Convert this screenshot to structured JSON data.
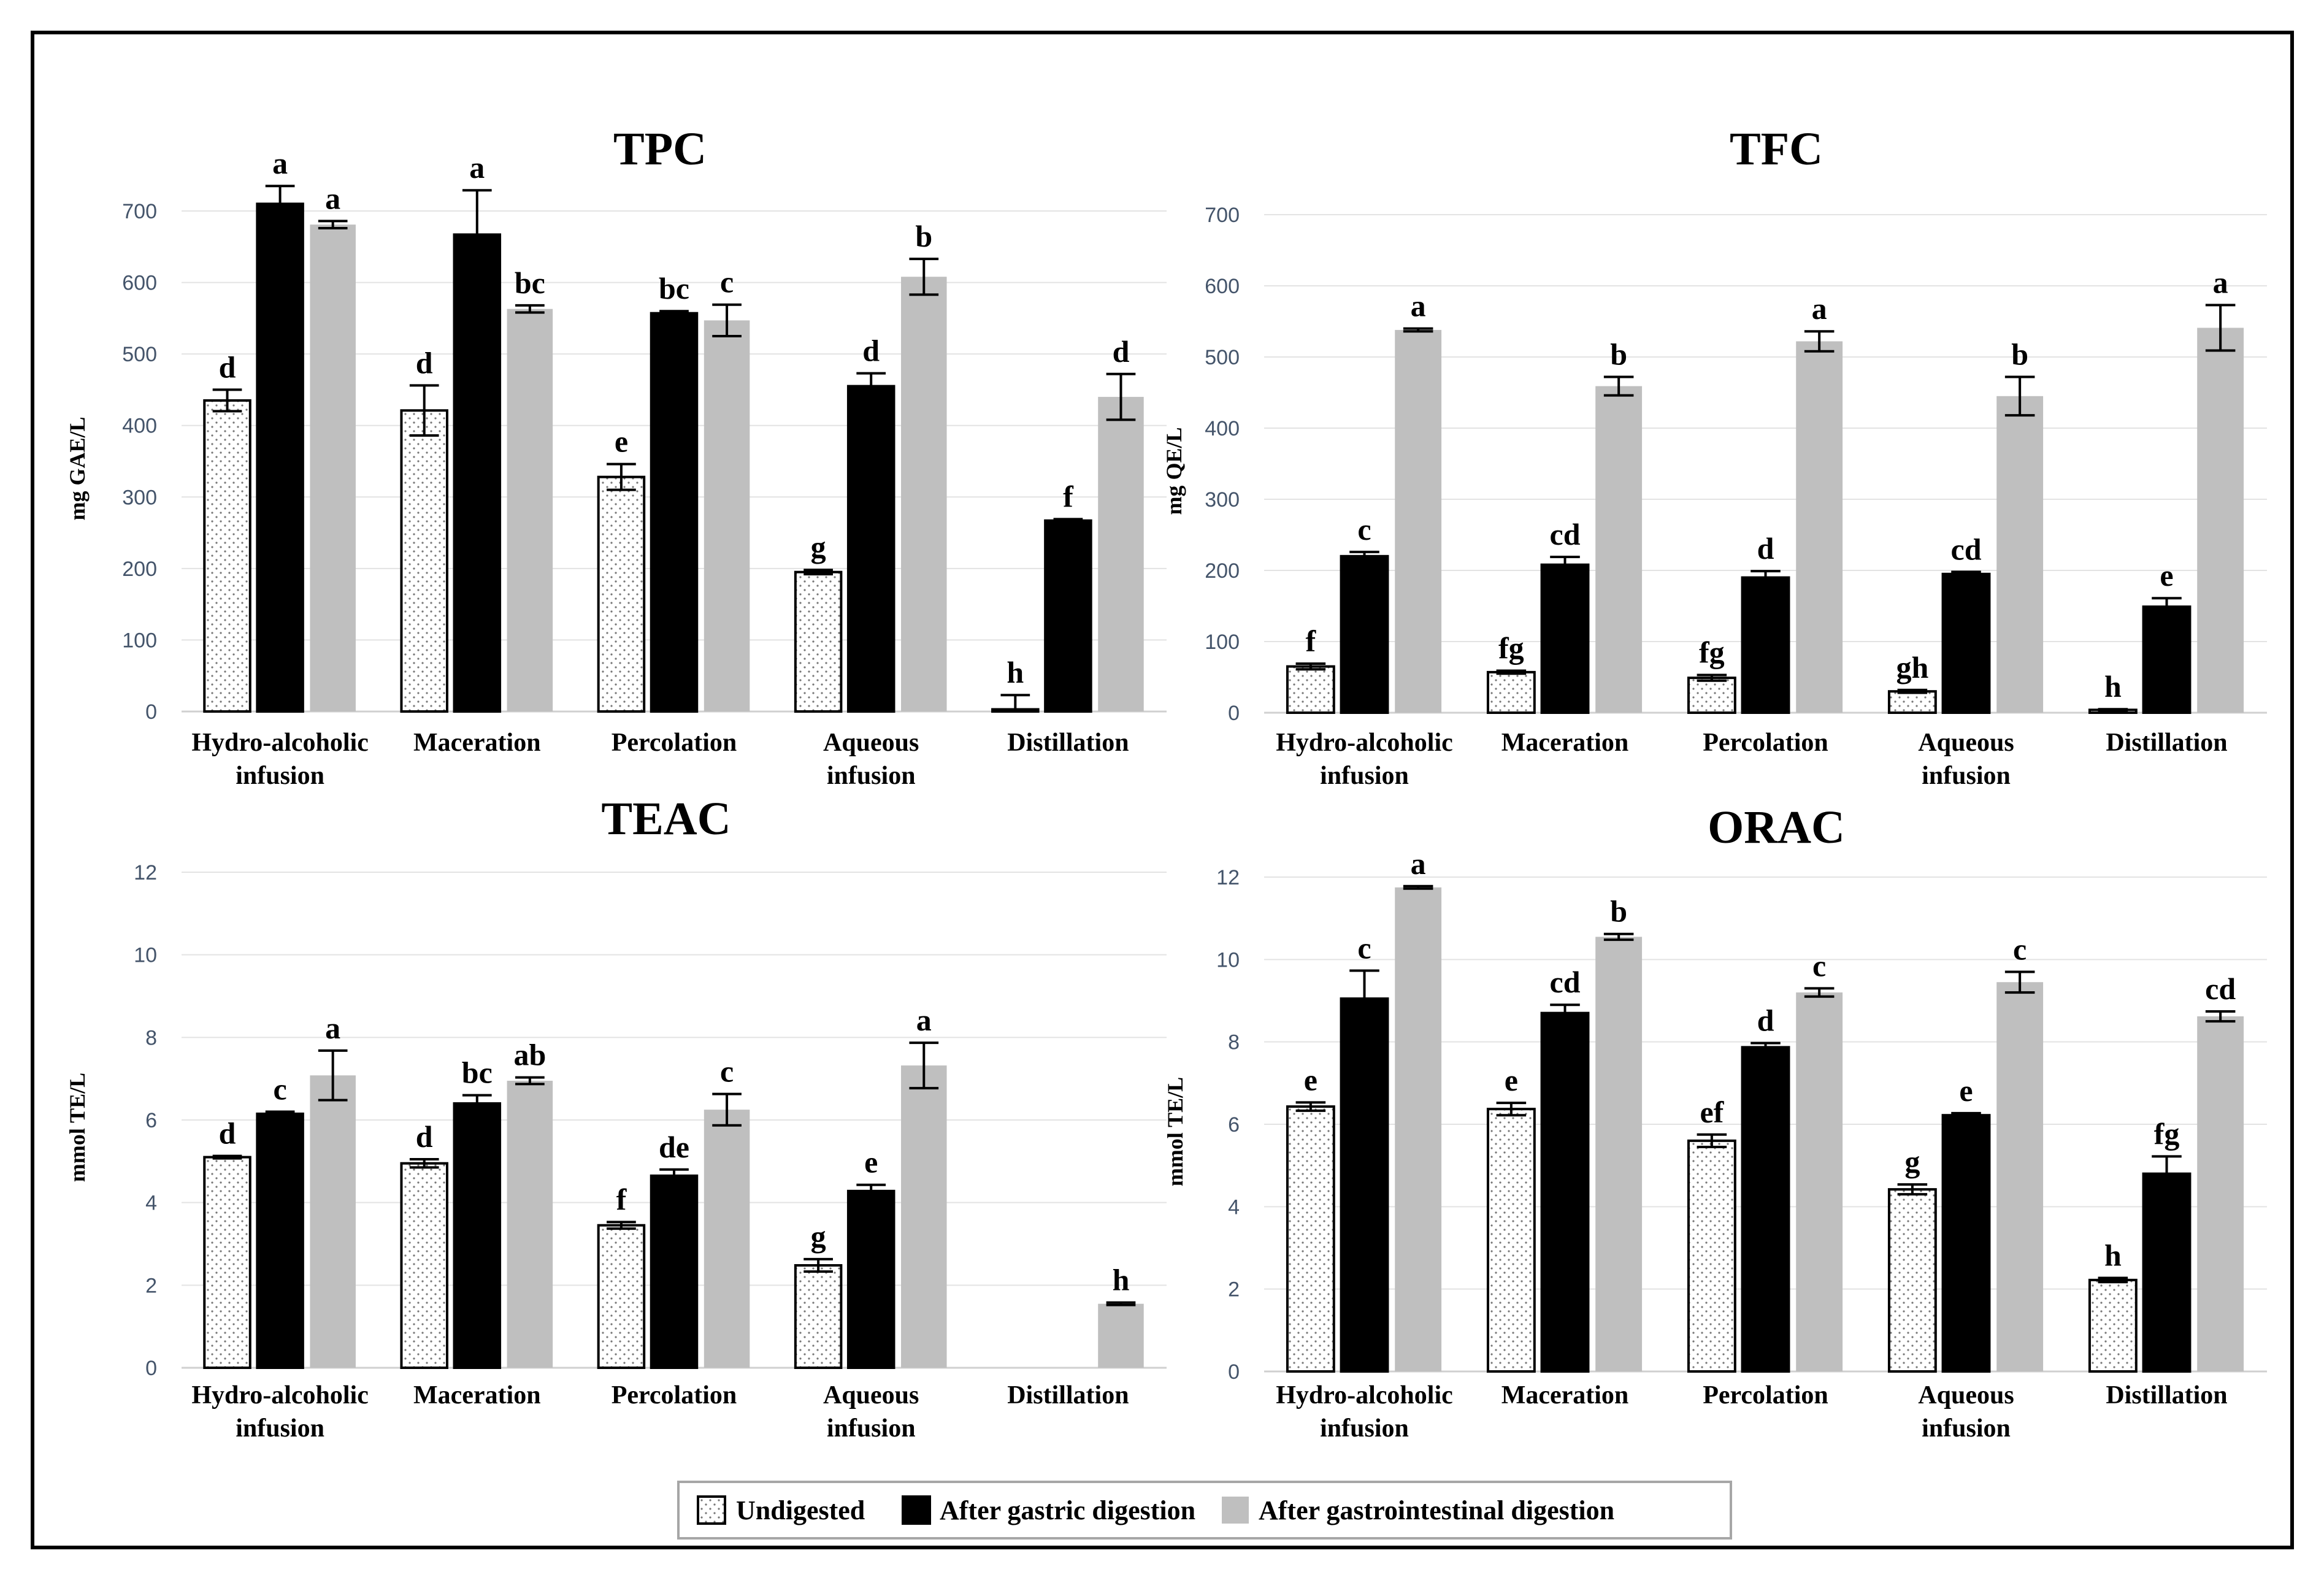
{
  "legend": [
    {
      "name": "Undigested",
      "fill": "dotted",
      "color": "#ffffff"
    },
    {
      "name": "After gastric digestion",
      "color": "#000000"
    },
    {
      "name": "After gastrointestinal digestion",
      "color": "#bfbfbf"
    }
  ],
  "chart_data": [
    {
      "type": "bar",
      "title": "TPC",
      "ylabel": "mg GAE/L",
      "ylim": [
        0,
        700
      ],
      "yticks": [
        0,
        100,
        200,
        300,
        400,
        500,
        600,
        700
      ],
      "categories": [
        "Hydro-alcoholic infusion",
        "Maceration",
        "Percolation",
        "Aqueous infusion",
        "Distillation"
      ],
      "category_lines": [
        [
          "Hydro-alcoholic",
          "infusion"
        ],
        [
          "Maceration"
        ],
        [
          "Percolation"
        ],
        [
          "Aqueous",
          "infusion"
        ],
        [
          "Distillation"
        ]
      ],
      "series": [
        {
          "name": "Undigested",
          "values": [
            435,
            421,
            328,
            195,
            3
          ],
          "errors": [
            15,
            35,
            18,
            3,
            20
          ],
          "letters": [
            "d",
            "d",
            "e",
            "g",
            "h"
          ]
        },
        {
          "name": "After gastric digestion",
          "values": [
            710,
            667,
            557,
            455,
            267
          ],
          "errors": [
            25,
            62,
            3,
            18,
            2
          ],
          "letters": [
            "a",
            "a",
            "bc",
            "d",
            "f"
          ]
        },
        {
          "name": "After gastrointestinal digestion",
          "values": [
            681,
            563,
            547,
            608,
            440
          ],
          "errors": [
            5,
            5,
            22,
            25,
            32
          ],
          "letters": [
            "a",
            "bc",
            "c",
            "b",
            "d"
          ]
        }
      ]
    },
    {
      "type": "bar",
      "title": "TFC",
      "ylabel": "mg QE/L",
      "ylim": [
        0,
        700
      ],
      "yticks": [
        0,
        100,
        200,
        300,
        400,
        500,
        600,
        700
      ],
      "categories": [
        "Hydro-alcoholic infusion",
        "Maceration",
        "Percolation",
        "Aqueous infusion",
        "Distillation"
      ],
      "category_lines": [
        [
          "Hydro-alcoholic",
          "infusion"
        ],
        [
          "Maceration"
        ],
        [
          "Percolation"
        ],
        [
          "Aqueous",
          "infusion"
        ],
        [
          "Distillation"
        ]
      ],
      "series": [
        {
          "name": "Undigested",
          "values": [
            65,
            57,
            49,
            30,
            4
          ],
          "errors": [
            4,
            2,
            4,
            2,
            1
          ],
          "letters": [
            "f",
            "fg",
            "fg",
            "gh",
            "h"
          ]
        },
        {
          "name": "After gastric digestion",
          "values": [
            220,
            208,
            190,
            195,
            149
          ],
          "errors": [
            6,
            11,
            9,
            3,
            12
          ],
          "letters": [
            "c",
            "cd",
            "d",
            "cd",
            "e"
          ]
        },
        {
          "name": "After gastrointestinal digestion",
          "values": [
            538,
            459,
            522,
            445,
            541
          ],
          "errors": [
            2,
            13,
            14,
            27,
            32
          ],
          "letters": [
            "a",
            "b",
            "a",
            "b",
            "a"
          ]
        }
      ]
    },
    {
      "type": "bar",
      "title": "TEAC",
      "ylabel": "mmol TE/L",
      "ylim": [
        0,
        12
      ],
      "yticks": [
        0,
        2,
        4,
        6,
        8,
        10,
        12
      ],
      "categories": [
        "Hydro-alcoholic infusion",
        "Maceration",
        "Percolation",
        "Aqueous infusion",
        "Distillation"
      ],
      "category_lines": [
        [
          "Hydro-alcoholic",
          "infusion"
        ],
        [
          "Maceration"
        ],
        [
          "Percolation"
        ],
        [
          "Aqueous",
          "infusion"
        ],
        [
          "Distillation"
        ]
      ],
      "series": [
        {
          "name": "Undigested",
          "values": [
            5.1,
            4.95,
            3.45,
            2.48,
            null
          ],
          "errors": [
            0.03,
            0.1,
            0.08,
            0.15,
            null
          ],
          "letters": [
            "d",
            "d",
            "f",
            "g",
            ""
          ]
        },
        {
          "name": "After gastric digestion",
          "values": [
            6.15,
            6.4,
            4.65,
            4.28,
            null
          ],
          "errors": [
            0.05,
            0.2,
            0.15,
            0.15,
            null
          ],
          "letters": [
            "c",
            "bc",
            "de",
            "e",
            ""
          ]
        },
        {
          "name": "After gastrointestinal digestion",
          "values": [
            7.08,
            6.95,
            6.25,
            7.32,
            1.55
          ],
          "errors": [
            0.6,
            0.08,
            0.38,
            0.55,
            0.03
          ],
          "letters": [
            "a",
            "ab",
            "c",
            "a",
            "h"
          ]
        }
      ]
    },
    {
      "type": "bar",
      "title": "ORAC",
      "ylabel": "mmol TE/L",
      "ylim": [
        0,
        12
      ],
      "yticks": [
        0,
        2,
        4,
        6,
        8,
        10,
        12
      ],
      "categories": [
        "Hydro-alcoholic infusion",
        "Maceration",
        "Percolation",
        "Aqueous infusion",
        "Distillation"
      ],
      "category_lines": [
        [
          "Hydro-alcoholic",
          "infusion"
        ],
        [
          "Maceration"
        ],
        [
          "Percolation"
        ],
        [
          "Aqueous",
          "infusion"
        ],
        [
          "Distillation"
        ]
      ],
      "series": [
        {
          "name": "Undigested",
          "values": [
            6.43,
            6.37,
            5.6,
            4.42,
            2.22
          ],
          "errors": [
            0.1,
            0.15,
            0.15,
            0.12,
            0.05
          ],
          "letters": [
            "e",
            "e",
            "ef",
            "g",
            "h"
          ]
        },
        {
          "name": "After gastric digestion",
          "values": [
            9.05,
            8.7,
            7.87,
            6.22,
            4.8
          ],
          "errors": [
            0.68,
            0.2,
            0.1,
            0.05,
            0.42
          ],
          "letters": [
            "c",
            "cd",
            "d",
            "e",
            "fg"
          ]
        },
        {
          "name": "After gastrointestinal digestion",
          "values": [
            11.75,
            10.55,
            9.2,
            9.45,
            8.62
          ],
          "errors": [
            0.03,
            0.07,
            0.1,
            0.25,
            0.12
          ],
          "letters": [
            "a",
            "b",
            "c",
            "c",
            "cd"
          ]
        }
      ]
    }
  ]
}
